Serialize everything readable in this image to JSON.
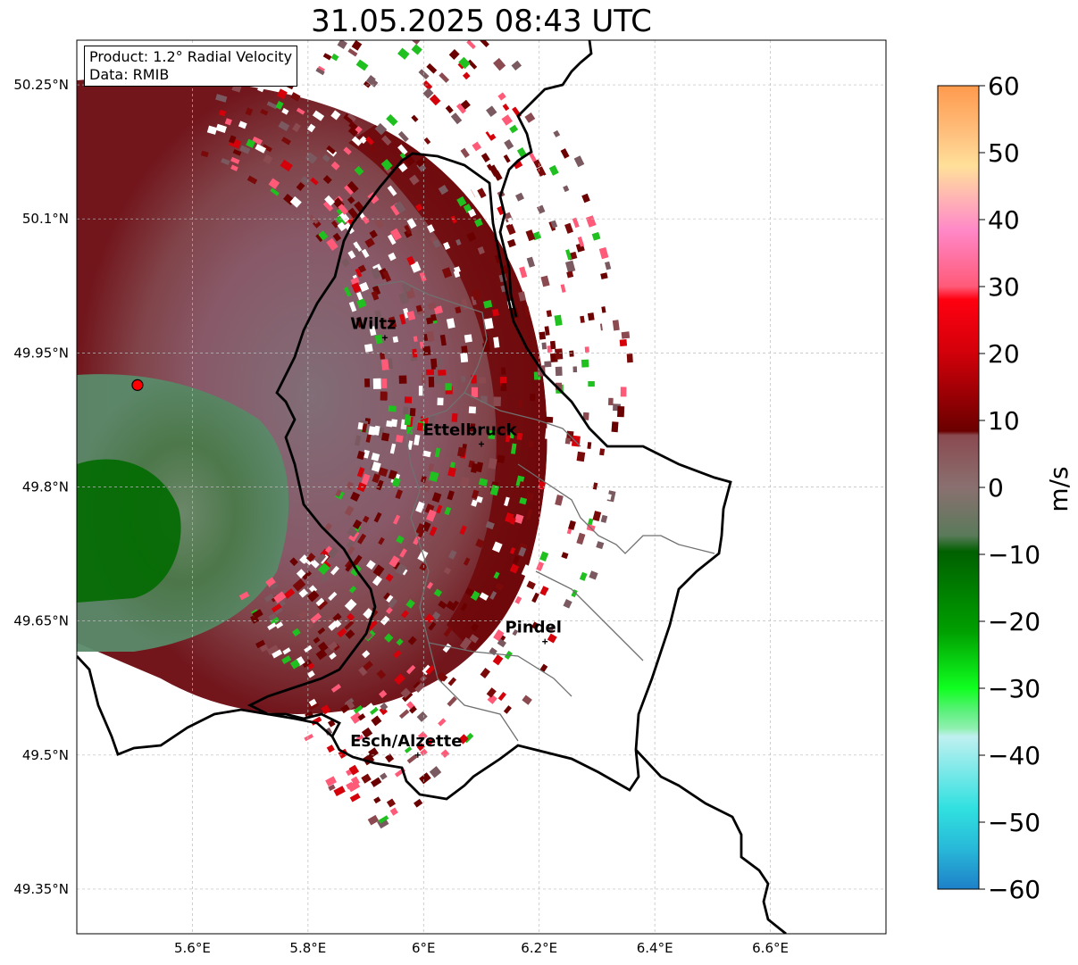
{
  "title": "31.05.2025 08:43 UTC",
  "info": {
    "product": "Product: 1.2° Radial Velocity",
    "data": "Data: RMIB"
  },
  "axes": {
    "lon_ticks": [
      "5.6°E",
      "5.8°E",
      "6°E",
      "6.2°E",
      "6.4°E",
      "6.6°E"
    ],
    "lat_ticks": [
      "50.25°N",
      "50.1°N",
      "49.95°N",
      "49.8°N",
      "49.65°N",
      "49.5°N",
      "49.35°N"
    ],
    "lon_range": [
      5.4,
      6.8
    ],
    "lat_range": [
      49.3,
      50.3
    ],
    "grid": true
  },
  "cities": [
    {
      "name": "Wiltz",
      "lon": 5.933,
      "lat": 49.967
    },
    {
      "name": "Ettelbruck",
      "lon": 6.1,
      "lat": 49.848
    },
    {
      "name": "Pindel",
      "lon": 6.21,
      "lat": 49.627
    },
    {
      "name": "Esch/Alzette",
      "lon": 5.99,
      "lat": 49.5
    }
  ],
  "radar_site": {
    "lon": 5.505,
    "lat": 49.914
  },
  "colorbar": {
    "unit": "m/s",
    "min": -60,
    "max": 60,
    "tick_labels": [
      "60",
      "50",
      "40",
      "30",
      "20",
      "10",
      "0",
      "−10",
      "−20",
      "−30",
      "−40",
      "−50",
      "−60"
    ],
    "colors_hex": {
      "strong_positive": "#ff9a4d",
      "mid_positive": "#e8000a",
      "low_positive": "#7a0000",
      "near_zero_pos": "#8a5a60",
      "near_zero_neg": "#5f8a5f",
      "low_negative": "#006a00",
      "mid_negative": "#20e020",
      "strong_negative": "#1e8cc8"
    }
  },
  "icons": {
    "radar": "red-circle-marker",
    "city": "plus-marker"
  }
}
